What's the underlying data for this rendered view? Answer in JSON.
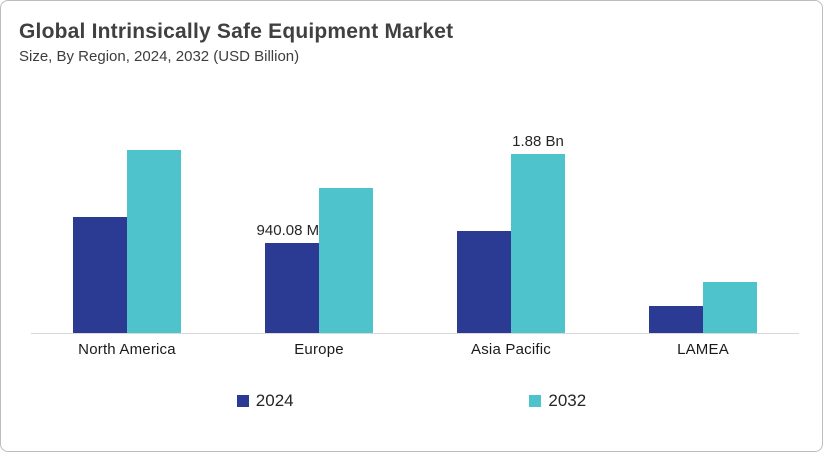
{
  "card": {
    "title": "Global Intrinsically Safe Equipment Market",
    "subtitle": "Size, By Region, 2024, 2032 (USD Billion)"
  },
  "chart_data": {
    "type": "bar",
    "title": "Global Intrinsically Safe Equipment Market",
    "subtitle": "Size, By Region, 2024, 2032 (USD Billion)",
    "unit": "USD Billion",
    "categories": [
      "North America",
      "Europe",
      "Asia Pacific",
      "LAMEA"
    ],
    "series": [
      {
        "name": "2024",
        "color": "#2B3B94",
        "values": [
          1.22,
          0.94008,
          1.07,
          0.28
        ],
        "data_labels": [
          "",
          "940.08 Mn",
          "",
          ""
        ]
      },
      {
        "name": "2032",
        "color": "#4FC3CC",
        "values": [
          1.92,
          1.52,
          1.88,
          0.54
        ],
        "data_labels": [
          "",
          "",
          "1.88 Bn",
          ""
        ]
      }
    ],
    "xlabel": "",
    "ylabel": "",
    "ylim": [
      0,
      2.1
    ],
    "grid": false,
    "axis_line_color": "#d9d9d9",
    "legend_position": "bottom",
    "legend": [
      "2024",
      "2032"
    ]
  }
}
